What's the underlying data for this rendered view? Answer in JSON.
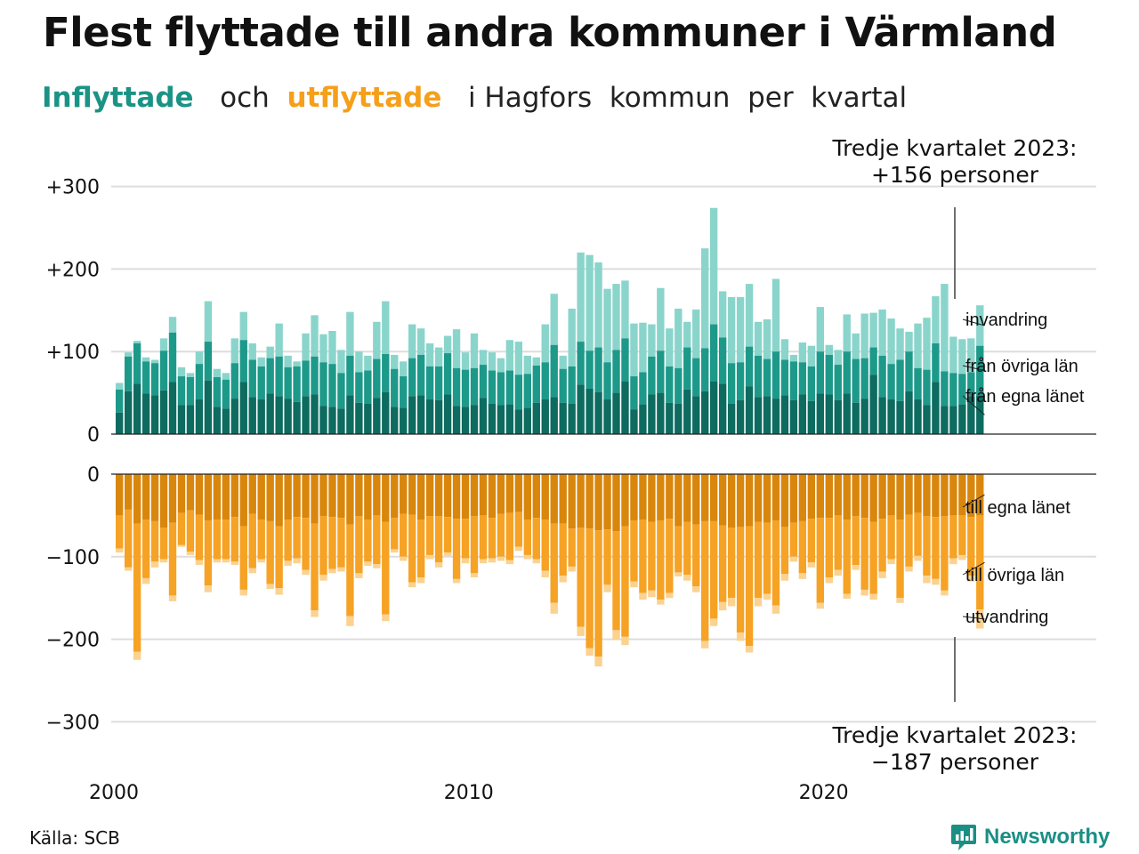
{
  "title": "Flest flyttade till andra kommuner i Värmland",
  "subtitle": {
    "inflyttade": "Inflyttade",
    "och": "och",
    "utflyttade": "utflyttade",
    "rest": "i Hagfors  kommun  per  kvartal"
  },
  "source": "Källa: SCB",
  "logo_text": "Newsworthy",
  "colors": {
    "in_egna": "#0d6b60",
    "in_ovriga": "#1d998a",
    "in_invandring": "#8ad5cb",
    "ut_egna": "#d9860c",
    "ut_ovriga": "#f6a224",
    "ut_utvandring": "#fbd290",
    "grid": "#dddddd"
  },
  "annotations": {
    "top_line1": "Tredje kvartalet 2023:",
    "top_line2": "+156 personer",
    "bottom_line1": "Tredje kvartalet 2023:",
    "bottom_line2": "−187 personer"
  },
  "chart_data": {
    "type": "bar",
    "stacked": true,
    "title": "Flest flyttade till andra kommuner i Värmland",
    "subtitle": "Inflyttade och utflyttade i Hagfors kommun per kvartal",
    "x_ticks": [
      "2000",
      "2010",
      "2020"
    ],
    "x_start": "2000Q1",
    "x_end": "2023Q3",
    "ylim_in": [
      0,
      300
    ],
    "ylim_out": [
      -300,
      0
    ],
    "y_ticks_in": [
      "0",
      "+100",
      "+200",
      "+300"
    ],
    "y_ticks_out": [
      "0",
      "−100",
      "−200",
      "−300"
    ],
    "grid": true,
    "inflyttade": {
      "series_names": [
        "från egna länet",
        "från övriga län",
        "invandring"
      ],
      "totals": [
        62,
        99,
        113,
        93,
        90,
        116,
        142,
        81,
        74,
        100,
        161,
        79,
        74,
        116,
        148,
        110,
        93,
        106,
        134,
        95,
        88,
        122,
        144,
        121,
        125,
        102,
        148,
        100,
        95,
        136,
        161,
        96,
        88,
        133,
        128,
        110,
        105,
        119,
        127,
        99,
        122,
        102,
        99,
        92,
        114,
        112,
        95,
        93,
        133,
        170,
        95,
        152,
        220,
        217,
        208,
        176,
        182,
        186,
        134,
        135,
        133,
        177,
        128,
        152,
        136,
        151,
        225,
        274,
        173,
        166,
        166,
        182,
        136,
        139,
        188,
        115,
        96,
        111,
        107,
        154,
        108,
        102,
        145,
        122,
        146,
        147,
        151,
        140,
        128,
        124,
        134,
        141,
        167,
        182,
        118,
        115,
        116,
        156
      ],
      "egna": [
        26,
        52,
        61,
        49,
        47,
        53,
        63,
        35,
        35,
        42,
        65,
        33,
        31,
        43,
        63,
        45,
        42,
        49,
        46,
        43,
        39,
        46,
        48,
        34,
        33,
        31,
        47,
        38,
        37,
        44,
        51,
        33,
        32,
        46,
        47,
        42,
        41,
        48,
        34,
        33,
        35,
        44,
        37,
        35,
        36,
        30,
        32,
        38,
        42,
        45,
        38,
        37,
        60,
        55,
        51,
        42,
        50,
        64,
        30,
        36,
        48,
        50,
        38,
        37,
        54,
        46,
        52,
        64,
        61,
        37,
        41,
        58,
        45,
        46,
        43,
        47,
        41,
        48,
        40,
        49,
        48,
        41,
        49,
        38,
        43,
        72,
        45,
        42,
        40,
        52,
        42,
        35,
        63,
        34,
        34,
        36,
        46,
        47
      ],
      "ovriga": [
        28,
        42,
        49,
        39,
        39,
        48,
        60,
        35,
        34,
        43,
        47,
        36,
        35,
        43,
        51,
        45,
        40,
        43,
        48,
        38,
        43,
        43,
        46,
        53,
        52,
        43,
        48,
        37,
        40,
        47,
        46,
        46,
        38,
        46,
        49,
        40,
        41,
        50,
        46,
        45,
        45,
        40,
        40,
        40,
        41,
        42,
        41,
        45,
        45,
        63,
        41,
        45,
        52,
        46,
        54,
        45,
        52,
        52,
        40,
        39,
        46,
        51,
        44,
        43,
        51,
        46,
        52,
        69,
        56,
        49,
        46,
        48,
        50,
        45,
        57,
        43,
        47,
        39,
        42,
        51,
        48,
        43,
        51,
        53,
        49,
        33,
        50,
        43,
        50,
        48,
        38,
        43,
        47,
        42,
        40,
        37,
        29,
        60
      ]
    },
    "utflyttade": {
      "series_names": [
        "till egna länet",
        "till övriga län",
        "utvandring"
      ],
      "totals": [
        -95,
        -117,
        -225,
        -133,
        -113,
        -107,
        -154,
        -88,
        -98,
        -110,
        -143,
        -107,
        -107,
        -110,
        -147,
        -120,
        -107,
        -139,
        -146,
        -111,
        -108,
        -122,
        -173,
        -129,
        -120,
        -118,
        -184,
        -126,
        -111,
        -114,
        -178,
        -95,
        -105,
        -137,
        -132,
        -103,
        -113,
        -99,
        -132,
        -108,
        -125,
        -108,
        -107,
        -105,
        -109,
        -93,
        -103,
        -108,
        -125,
        -169,
        -131,
        -118,
        -196,
        -220,
        -233,
        -143,
        -201,
        -207,
        -137,
        -152,
        -149,
        -158,
        -150,
        -124,
        -129,
        -143,
        -211,
        -184,
        -165,
        -160,
        -202,
        -216,
        -160,
        -152,
        -169,
        -129,
        -106,
        -127,
        -113,
        -163,
        -132,
        -123,
        -151,
        -116,
        -147,
        -152,
        -126,
        -109,
        -156,
        -118,
        -105,
        -132,
        -134,
        -147,
        -109,
        -104,
        -130,
        -187
      ],
      "egna": [
        -50,
        -43,
        -60,
        -55,
        -57,
        -65,
        -59,
        -47,
        -44,
        -49,
        -56,
        -55,
        -55,
        -52,
        -63,
        -48,
        -55,
        -57,
        -63,
        -55,
        -52,
        -53,
        -60,
        -51,
        -52,
        -53,
        -61,
        -51,
        -55,
        -50,
        -58,
        -53,
        -48,
        -49,
        -55,
        -51,
        -51,
        -52,
        -54,
        -54,
        -51,
        -50,
        -53,
        -48,
        -47,
        -46,
        -55,
        -53,
        -55,
        -60,
        -60,
        -66,
        -65,
        -66,
        -68,
        -67,
        -69,
        -63,
        -56,
        -55,
        -58,
        -56,
        -54,
        -63,
        -58,
        -61,
        -57,
        -57,
        -62,
        -65,
        -64,
        -63,
        -58,
        -59,
        -56,
        -64,
        -59,
        -57,
        -54,
        -53,
        -53,
        -50,
        -55,
        -51,
        -53,
        -58,
        -54,
        -50,
        -55,
        -49,
        -47,
        -51,
        -52,
        -51,
        -50,
        -50,
        -52,
        -50
      ],
      "ovriga": [
        -40,
        -70,
        -155,
        -71,
        -49,
        -38,
        -88,
        -39,
        -50,
        -55,
        -79,
        -48,
        -48,
        -54,
        -77,
        -66,
        -48,
        -76,
        -75,
        -50,
        -50,
        -63,
        -105,
        -71,
        -63,
        -60,
        -111,
        -69,
        -51,
        -59,
        -112,
        -38,
        -52,
        -82,
        -70,
        -47,
        -56,
        -43,
        -73,
        -48,
        -69,
        -53,
        -49,
        -52,
        -57,
        -42,
        -43,
        -50,
        -62,
        -96,
        -63,
        -46,
        -120,
        -145,
        -153,
        -67,
        -120,
        -134,
        -74,
        -89,
        -83,
        -96,
        -90,
        -56,
        -64,
        -75,
        -145,
        -118,
        -93,
        -85,
        -128,
        -145,
        -92,
        -86,
        -103,
        -57,
        -41,
        -63,
        -53,
        -103,
        -72,
        -66,
        -90,
        -59,
        -87,
        -87,
        -64,
        -53,
        -95,
        -63,
        -52,
        -72,
        -75,
        -90,
        -52,
        -48,
        -71,
        -114
      ]
    }
  }
}
